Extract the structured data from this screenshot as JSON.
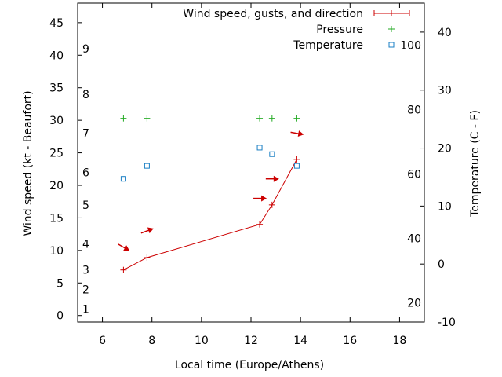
{
  "chart_data": {
    "type": "line",
    "xlabel": "Local time (Europe/Athens)",
    "ylabel": "Wind speed (kt - Beaufort)",
    "y2label": "Temperature (C - F)",
    "xlim": [
      5,
      19
    ],
    "ylim": [
      -1,
      48
    ],
    "y2lim": [
      -10,
      45
    ],
    "xticks": [
      "6",
      "8",
      "10",
      "12",
      "14",
      "16",
      "18"
    ],
    "yticks": [
      "0",
      "5",
      "10",
      "15",
      "20",
      "25",
      "30",
      "35",
      "40",
      "45"
    ],
    "y2ticks": [
      "-10",
      "0",
      "10",
      "20",
      "30",
      "40"
    ],
    "fahrenheit_labels": [
      {
        "f": 20,
        "text": "20"
      },
      {
        "f": 40,
        "text": "40"
      },
      {
        "f": 60,
        "text": "60"
      },
      {
        "f": 80,
        "text": "80"
      },
      {
        "f": 100,
        "text": "100"
      }
    ],
    "beaufort_labels": [
      {
        "kt": 1,
        "text": "1"
      },
      {
        "kt": 4,
        "text": "2"
      },
      {
        "kt": 7,
        "text": "3"
      },
      {
        "kt": 11,
        "text": "4"
      },
      {
        "kt": 17,
        "text": "5"
      },
      {
        "kt": 22,
        "text": "6"
      },
      {
        "kt": 28,
        "text": "7"
      },
      {
        "kt": 34,
        "text": "8"
      },
      {
        "kt": 41,
        "text": "9"
      }
    ],
    "legend_position": "top-right",
    "series": [
      {
        "name": "Wind speed, gusts, and direction",
        "color": "#cc0000",
        "x": [
          6.85,
          7.8,
          12.35,
          12.85,
          13.85
        ],
        "y": [
          7,
          8.9,
          14,
          17,
          24
        ]
      },
      {
        "name": "Pressure",
        "color": "#22aa22",
        "x": [
          6.85,
          7.8,
          12.35,
          12.85,
          13.85
        ],
        "y": [
          30.3,
          30.3,
          30.3,
          30.3,
          30.3
        ]
      },
      {
        "name": "Temperature",
        "color": "#1a7fc4",
        "x": [
          6.85,
          7.8,
          12.35,
          12.85,
          13.85
        ],
        "y": [
          21,
          23,
          25.8,
          24.8,
          23
        ]
      }
    ],
    "wind_arrows": [
      {
        "x": 6.85,
        "kt": 10.5,
        "angle": 30
      },
      {
        "x": 7.8,
        "kt": 13,
        "angle": -20
      },
      {
        "x": 12.35,
        "kt": 18,
        "angle": 0
      },
      {
        "x": 12.85,
        "kt": 21,
        "angle": 0
      },
      {
        "x": 13.85,
        "kt": 28,
        "angle": 10
      }
    ]
  }
}
